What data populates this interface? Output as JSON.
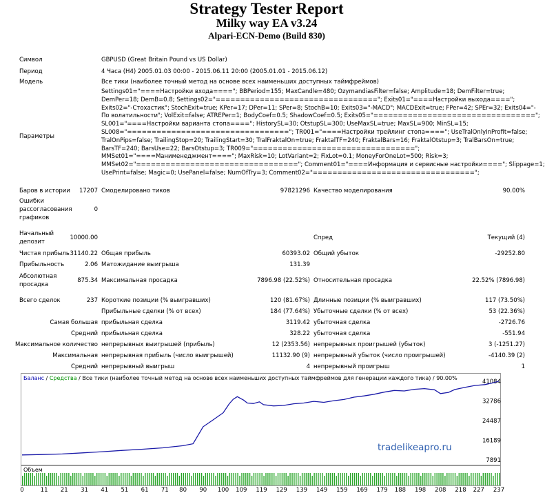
{
  "header": {
    "title": "Strategy Tester Report",
    "subtitle": "Milky way EA v3.24",
    "company": "Alpari-ECN-Demo (Build 830)"
  },
  "rows": {
    "symbol_label": "Символ",
    "symbol_value": "GBPUSD (Great Britain Pound vs US Dollar)",
    "period_label": "Период",
    "period_value": "4 Часа (H4) 2005.01.03 00:00 - 2015.06.11 20:00 (2005.01.01 - 2015.06.12)",
    "model_label": "Модель",
    "model_value": "Все тики (наиболее точный метод на основе всех наименьших доступных таймфреймов)",
    "params_label": "Параметры",
    "params_lines": [
      "Settings01=\"====Настройки входа====\"; BBPeriod=155; MaxCandle=480; OzymandiasFilter=false; Amplitude=18; DemFilter=true;",
      "DemPer=18; DemB=0.8; Settings02=\"=================================\"; Exits01=\"====Настройки выхода====\";",
      "Exits02=\"-Стохастик\"; StochExit=true; KPer=17; DPer=11; SPer=8; StochB=10; Exits03=\"-MACD\"; MACDExit=true; FPer=42; SPEr=32; Exits04=\"-",
      "По волатильности\"; VolExit=false; ATREPer=1; BodyCoef=0.5; ShadowCoef=0.5; Exits05=\"=================================\";",
      "SL001=\"====Настройки варианта стопа====\"; HistorySL=30; OtstupSL=300; UseMaxSL=true; MaxSL=900; MinSL=15;",
      "SL008=\"=================================\"; TR001=\"====Настройки трейлинг стопа====\"; UseTralOnlyInProfit=false;",
      "TralOnPips=false; TrailingStop=20; TrailingStart=30; TralFraktalOn=true; FraktalTF=240; FraktalBars=16; FraktalOtstup=3; TralBarsOn=true;",
      "BarsTF=240; BarsUse=22; BarsOtstup=3; TR009=\"=================================\";",
      "MMSet01=\"====Манименеджмент====\"; MaxRisk=10; LotVariant=2; FixLot=0.1; MoneyForOneLot=500; Risk=3;",
      "MMSet02=\"=================================\"; Comment01=\"====Информация и сервисные настройки====\"; Slippage=1;",
      "UsePrint=false; Magic=0; UsePanel=false; NumOfTry=3; Comment02=\"=================================\";"
    ],
    "bars_label": "Баров в истории",
    "bars_value": "17207",
    "ticks_label": "Смоделировано тиков",
    "ticks_value": "97821296",
    "quality_label": "Качество моделирования",
    "quality_value": "90.00%",
    "errors_label_1": "Ошибки",
    "errors_label_2": "рассогласования",
    "errors_label_3": "графиков",
    "errors_value": "0",
    "deposit_label_1": "Начальный",
    "deposit_label_2": "депозит",
    "deposit_value": "10000.00",
    "spread_label": "Спред",
    "spread_value": "Текущий (4)",
    "net_label": "Чистая прибыль",
    "net_value": "31140.22",
    "gross_profit_label": "Общая прибыль",
    "gross_profit_value": "60393.02",
    "gross_loss_label": "Общий убыток",
    "gross_loss_value": "-29252.80",
    "pf_label": "Прибыльность",
    "pf_value": "2.06",
    "expected_label": "Матожидание выигрыша",
    "expected_value": "131.39",
    "absdd_label_1": "Абсолютная",
    "absdd_label_2": "просадка",
    "absdd_value": "875.34",
    "maxdd_label": "Максимальная просадка",
    "maxdd_value": "7896.98 (22.52%)",
    "reldd_label": "Относительная просадка",
    "reldd_value": "22.52% (7896.98)",
    "trades_label": "Всего сделок",
    "trades_value": "237",
    "short_label": "Короткие позиции (% выигравших)",
    "short_value": "120 (81.67%)",
    "long_label": "Длинные позиции (% выигравших)",
    "long_value": "117 (73.50%)",
    "profit_trades_label": "Прибыльные сделки (% от всех)",
    "profit_trades_value": "184 (77.64%)",
    "loss_trades_label": "Убыточные сделки (% от всех)",
    "loss_trades_value": "53 (22.36%)",
    "largest_label": "Самая большая",
    "largest_profit_label": "прибыльная сделка",
    "largest_profit_value": "3119.42",
    "largest_loss_label": "убыточная сделка",
    "largest_loss_value": "-2726.76",
    "average_label": "Средний",
    "avg_profit_label": "прибыльная сделка",
    "avg_profit_value": "328.22",
    "avg_loss_label": "убыточная сделка",
    "avg_loss_value": "-551.94",
    "maxcount_label": "Максимальное количество",
    "max_consec_wins_label": "непрерывных выигрышей (прибыль)",
    "max_consec_wins_value": "12 (2353.56)",
    "max_consec_losses_label": "непрерывных проигрышей (убыток)",
    "max_consec_losses_value": "3 (-1251.27)",
    "maximal_label": "Максимальная",
    "max_consec_profit_label": "непрерывная прибыль (число выигрышей)",
    "max_consec_profit_value": "11132.90 (9)",
    "max_consec_loss_label": "непрерывный убыток (число проигрышей)",
    "max_consec_loss_value": "-4140.39 (2)",
    "avg_consec_label": "Средний",
    "avg_consec_wins_label": "непрерывный выигрыш",
    "avg_consec_wins_value": "4",
    "avg_consec_losses_label": "непрерывный проигрыш",
    "avg_consec_losses_value": "1"
  },
  "watermark": "tradelikeapro.ru",
  "chart_data": {
    "type": "line",
    "legend": {
      "balance": "Баланс",
      "sep1": " / ",
      "equity": "Средства",
      "sep2": " / ",
      "info": "Все тики (наиболее точный метод на основе всех наименьших доступных таймфреймов для генерации каждого тика)",
      "sep3": " / ",
      "quality": "90.00%"
    },
    "y_ticks": [
      "41084",
      "32786",
      "24487",
      "16189",
      "7891"
    ],
    "ylim": [
      7891,
      41084
    ],
    "xlim": [
      0,
      237
    ],
    "x_ticks": [
      "0",
      "11",
      "21",
      "31",
      "41",
      "51",
      "61",
      "71",
      "80",
      "90",
      "100",
      "109",
      "119",
      "129",
      "139",
      "149",
      "159",
      "169",
      "179",
      "188",
      "198",
      "208",
      "218",
      "227",
      "237"
    ],
    "volume_label": "Объем",
    "series": [
      {
        "x": [
          0,
          10,
          20,
          30,
          40,
          50,
          60,
          70,
          80,
          85,
          90,
          95,
          100,
          103,
          105,
          107,
          110,
          112,
          115,
          118,
          120,
          125,
          130,
          135,
          140,
          145,
          150,
          155,
          160,
          165,
          170,
          175,
          180,
          185,
          190,
          195,
          200,
          205,
          208,
          212,
          215,
          220,
          225,
          230,
          233,
          237
        ],
        "y": [
          10000,
          10150,
          10400,
          10850,
          11350,
          11900,
          12400,
          13000,
          13900,
          14700,
          21900,
          24800,
          27800,
          31600,
          33500,
          34600,
          33200,
          31900,
          31700,
          32400,
          31200,
          30700,
          30900,
          31600,
          31900,
          32600,
          32200,
          32900,
          33400,
          34400,
          34900,
          35600,
          36500,
          37200,
          37000,
          37700,
          38000,
          37500,
          35900,
          36400,
          37600,
          38500,
          39300,
          39700,
          40200,
          41100
        ]
      }
    ]
  }
}
